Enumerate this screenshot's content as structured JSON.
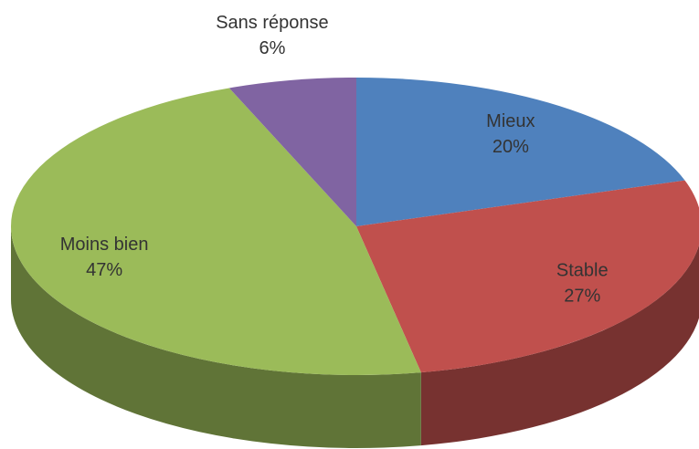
{
  "chart_data": {
    "type": "pie",
    "categories": [
      "Mieux",
      "Stable",
      "Moins bien",
      "Sans réponse"
    ],
    "values": [
      20,
      27,
      47,
      6
    ],
    "value_labels": [
      "20%",
      "27%",
      "47%",
      "6%"
    ],
    "colors": [
      "#4f81bd",
      "#c0504d",
      "#9bbb59",
      "#8064a2"
    ]
  }
}
